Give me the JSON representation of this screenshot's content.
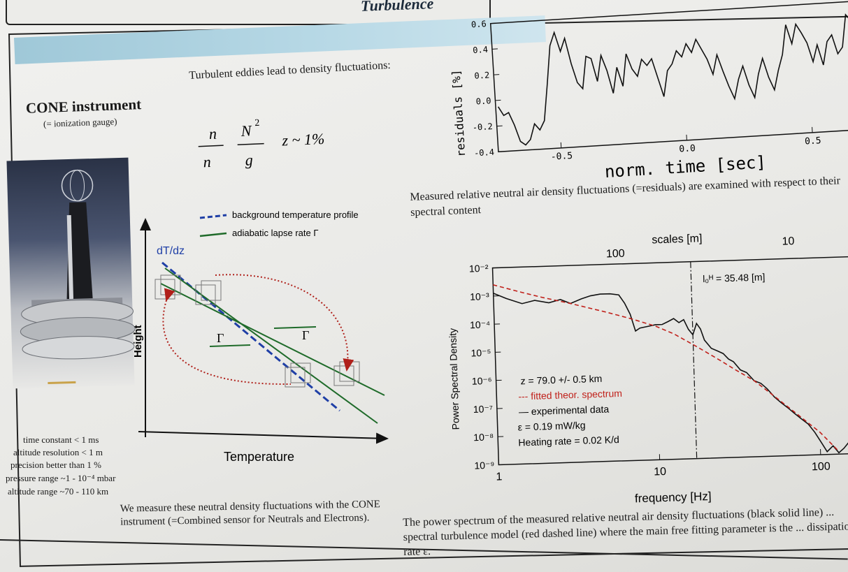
{
  "poster": {
    "banner_title": "Turbulence",
    "cone_title": "CONE instrument",
    "cone_subtitle": "(= ionization gauge)",
    "intro": "Turbulent eddies lead to density fluctuations:",
    "formula": {
      "n_top": "n",
      "n_bottom": "n",
      "N_squared": "N",
      "N_exp": "2",
      "g": "g",
      "z_approx": "z ~ 1%"
    },
    "specs": [
      "time constant < 1 ms",
      "altitude resolution < 1 m",
      "precision  better than 1 %",
      "pressure range ~1 - 10⁻⁴ mbar",
      "altitude range ~70 - 110 km"
    ],
    "bottom_left_text": "We measure these neutral density fluctuations with the CONE instrument (=Combined sensor for Neutrals and Electrons).",
    "mid_text": "Measured relative neutral air density fluctuations (=residuals) are examined with respect to their spectral content",
    "bottom_right_text": "The power spectrum of the measured relative neutral air density fluctuations (black solid line) ... spectral turbulence model (red dashed line) where the main free fitting parameter is the ... dissipation rate ε."
  },
  "diagram": {
    "legend_bg": "background temperature profile",
    "legend_ad": "adiabatic lapse rate Γ",
    "dTdz": "dT/dz",
    "gamma": "Γ",
    "xlabel": "Temperature",
    "ylabel": "Height",
    "colors": {
      "bg": "#1f3fa6",
      "ad": "#1f6b2a",
      "arrow": "#b0201a"
    }
  },
  "chart_data": [
    {
      "type": "line",
      "xlabel": "norm. time [sec]",
      "ylabel": "residuals [%]",
      "ylim": [
        -0.4,
        0.6
      ],
      "xlim": [
        -0.75,
        0.75
      ],
      "y_ticks": [
        "0.6",
        "0.4",
        "0.2",
        "0.0",
        "-0.2",
        "-0.4"
      ],
      "x_ticks": [
        "-0.5",
        "0.0",
        "0.5"
      ],
      "series": [
        {
          "x": [
            -0.74,
            -0.72,
            -0.7,
            -0.68,
            -0.66,
            -0.64,
            -0.62,
            -0.6,
            -0.58,
            -0.56,
            -0.54,
            -0.52,
            -0.5,
            -0.48,
            -0.46,
            -0.44,
            -0.42,
            -0.4,
            -0.38,
            -0.36,
            -0.34,
            -0.32,
            -0.3,
            -0.28,
            -0.26,
            -0.24,
            -0.22,
            -0.2,
            -0.18,
            -0.16,
            -0.14,
            -0.12,
            -0.1,
            -0.08,
            -0.06,
            -0.04,
            -0.02,
            0.0,
            0.02,
            0.04,
            0.06,
            0.08,
            0.1,
            0.12,
            0.14,
            0.16,
            0.18,
            0.2,
            0.22,
            0.24,
            0.26,
            0.28,
            0.3,
            0.32,
            0.34,
            0.36,
            0.38,
            0.4,
            0.42,
            0.44,
            0.46,
            0.48,
            0.5,
            0.52,
            0.54,
            0.56,
            0.58,
            0.6,
            0.62,
            0.64,
            0.66,
            0.68,
            0.7,
            0.72,
            0.74
          ],
          "y": [
            -0.05,
            -0.12,
            -0.1,
            -0.2,
            -0.33,
            -0.36,
            -0.32,
            -0.2,
            -0.25,
            -0.18,
            0.1,
            0.4,
            0.5,
            0.35,
            0.45,
            0.25,
            0.1,
            0.05,
            0.3,
            0.28,
            0.1,
            0.3,
            0.18,
            0.0,
            0.2,
            0.05,
            0.3,
            0.18,
            0.12,
            0.25,
            0.2,
            0.25,
            0.1,
            -0.05,
            0.15,
            0.2,
            0.3,
            0.25,
            0.35,
            0.28,
            0.38,
            0.3,
            0.22,
            0.1,
            0.25,
            0.12,
            0.0,
            -0.1,
            0.05,
            0.15,
            0.0,
            -0.1,
            0.08,
            0.2,
            0.05,
            -0.05,
            0.1,
            0.22,
            0.45,
            0.3,
            0.45,
            0.38,
            0.3,
            0.15,
            0.28,
            0.12,
            0.3,
            0.35,
            0.2,
            0.25,
            0.5,
            0.45,
            0.55,
            0.35,
            0.3
          ]
        }
      ]
    },
    {
      "type": "line",
      "xlabel": "frequency [Hz]",
      "ylabel": "Power Spectral Density",
      "top_axis_label": "scales [m]",
      "x_scale": "log",
      "y_scale": "log",
      "xlim": [
        1,
        200
      ],
      "ylim_exp": [
        -9,
        -2
      ],
      "x_ticks": [
        "1",
        "10",
        "100"
      ],
      "top_ticks": [
        "100",
        "10"
      ],
      "y_ticks": [
        "10⁻²",
        "10⁻³",
        "10⁻⁴",
        "10⁻⁵",
        "10⁻⁶",
        "10⁻⁷",
        "10⁻⁸",
        "10⁻⁹"
      ],
      "annotation": "l₀ᴴ = 35.48 [m]",
      "vline_freq": 17,
      "legend": [
        "z = 79.0 +/- 0.5 km",
        "--- fitted theor. spectrum",
        "— experimental data",
        "ε = 0.19 mW/kg",
        "Heating rate = 0.02 K/d"
      ],
      "series": [
        {
          "name": "experimental data",
          "color": "#1a1a1a",
          "freq": [
            1.0,
            1.2,
            1.5,
            1.8,
            2.2,
            2.6,
            3.0,
            3.5,
            4.0,
            4.6,
            5.3,
            6.0,
            6.5,
            7.0,
            7.5,
            8.0,
            9.0,
            10,
            11,
            12,
            13,
            14,
            15,
            16,
            17,
            18,
            19,
            20,
            22,
            24,
            26,
            28,
            30,
            33,
            36,
            40,
            44,
            48,
            53,
            58,
            64,
            70,
            77,
            85,
            93,
            100,
            110,
            120,
            130,
            140,
            150,
            165,
            180,
            195
          ],
          "psd_log": [
            -2.9,
            -3.1,
            -3.3,
            -3.2,
            -3.3,
            -3.2,
            -3.35,
            -3.2,
            -3.1,
            -3.05,
            -3.05,
            -3.1,
            -3.4,
            -3.8,
            -4.4,
            -4.3,
            -4.25,
            -4.2,
            -4.2,
            -4.1,
            -4.0,
            -4.15,
            -4.05,
            -4.4,
            -4.6,
            -4.2,
            -4.4,
            -4.8,
            -5.1,
            -5.2,
            -5.3,
            -5.5,
            -5.6,
            -5.9,
            -6.0,
            -6.3,
            -6.4,
            -6.6,
            -6.9,
            -7.1,
            -7.3,
            -7.5,
            -7.7,
            -7.9,
            -8.2,
            -8.5,
            -8.9,
            -8.7,
            -8.95,
            -8.8,
            -8.6,
            -8.9,
            -8.7,
            -9.0
          ]
        },
        {
          "name": "fitted theor. spectrum",
          "color": "#c0201a",
          "freq": [
            1.0,
            1.5,
            2.0,
            3.0,
            4.0,
            5.0,
            7.0,
            10,
            13,
            17,
            20,
            25,
            30,
            40,
            50,
            70,
            100,
            130
          ],
          "psd_log": [
            -2.6,
            -2.9,
            -3.1,
            -3.35,
            -3.55,
            -3.7,
            -3.95,
            -4.25,
            -4.55,
            -4.95,
            -5.2,
            -5.55,
            -5.85,
            -6.3,
            -6.75,
            -7.45,
            -8.2,
            -8.9
          ]
        }
      ]
    }
  ]
}
